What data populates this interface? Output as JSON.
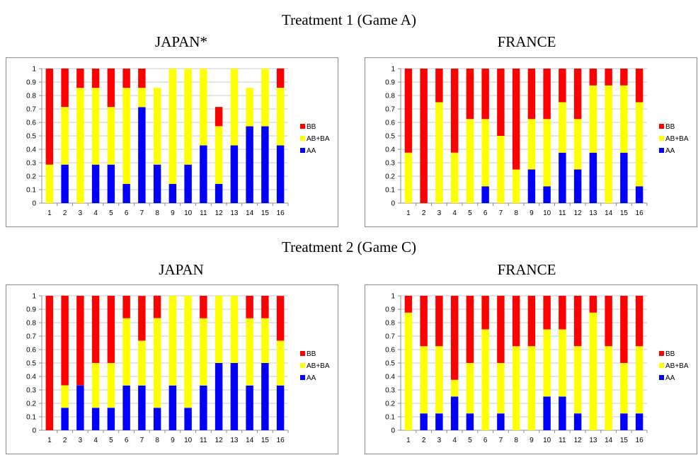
{
  "headings": {
    "treatment1": "Treatment 1 (Game A)",
    "treatment2": "Treatment 2 (Game C)"
  },
  "colors": {
    "BB": "#ff0000",
    "AB+BA": "#ffff00",
    "AA": "#0000ff"
  },
  "chart_data": [
    {
      "type": "bar",
      "stacked": true,
      "title": "JAPAN*",
      "categories": [
        "1",
        "2",
        "3",
        "4",
        "5",
        "6",
        "7",
        "8",
        "9",
        "10",
        "11",
        "12",
        "13",
        "14",
        "15",
        "16"
      ],
      "ylim": [
        0,
        1
      ],
      "yticks": [
        "0",
        "0.1",
        "0.2",
        "0.3",
        "0.4",
        "0.5",
        "0.6",
        "0.7",
        "0.8",
        "0.9",
        "1"
      ],
      "legend_position": "right",
      "series": [
        {
          "name": "AA",
          "values": [
            0,
            0.286,
            0,
            0.286,
            0.286,
            0.143,
            0.714,
            0.286,
            0.143,
            0.286,
            0.429,
            0.143,
            0.429,
            0.571,
            0.571,
            0.429
          ]
        },
        {
          "name": "AB+BA",
          "values": [
            0.286,
            0.429,
            0.857,
            0.571,
            0.429,
            0.714,
            0.143,
            0.571,
            0.857,
            0.714,
            0.571,
            0.429,
            0.571,
            0.286,
            0.429,
            0.429
          ]
        },
        {
          "name": "BB",
          "values": [
            0.714,
            0.286,
            0.143,
            0.143,
            0.286,
            0.143,
            0.143,
            0,
            0,
            0,
            0,
            0.143,
            0,
            0,
            0,
            0.143
          ]
        }
      ]
    },
    {
      "type": "bar",
      "stacked": true,
      "title": "FRANCE",
      "categories": [
        "1",
        "2",
        "3",
        "4",
        "5",
        "6",
        "7",
        "8",
        "9",
        "10",
        "11",
        "12",
        "13",
        "14",
        "15",
        "16"
      ],
      "ylim": [
        0,
        1
      ],
      "yticks": [
        "0",
        "0.1",
        "0.2",
        "0.3",
        "0.4",
        "0.5",
        "0.6",
        "0.7",
        "0.8",
        "0.9",
        "1"
      ],
      "legend_position": "right",
      "series": [
        {
          "name": "AA",
          "values": [
            0,
            0,
            0,
            0,
            0,
            0.125,
            0,
            0,
            0.25,
            0.125,
            0.375,
            0.25,
            0.375,
            0,
            0.375,
            0.125
          ]
        },
        {
          "name": "AB+BA",
          "values": [
            0.375,
            0,
            0.75,
            0.375,
            0.625,
            0.5,
            0.5,
            0.25,
            0.375,
            0.5,
            0.375,
            0.375,
            0.5,
            0.875,
            0.5,
            0.625
          ]
        },
        {
          "name": "BB",
          "values": [
            0.625,
            1,
            0.25,
            0.625,
            0.375,
            0.375,
            0.5,
            0.75,
            0.375,
            0.375,
            0.25,
            0.375,
            0.125,
            0.125,
            0.125,
            0.25
          ]
        }
      ]
    },
    {
      "type": "bar",
      "stacked": true,
      "title": "JAPAN",
      "categories": [
        "1",
        "2",
        "3",
        "4",
        "5",
        "6",
        "7",
        "8",
        "9",
        "10",
        "11",
        "12",
        "13",
        "14",
        "15",
        "16"
      ],
      "ylim": [
        0,
        1
      ],
      "yticks": [
        "0",
        "0.1",
        "0.2",
        "0.3",
        "0.4",
        "0.5",
        "0.6",
        "0.7",
        "0.8",
        "0.9",
        "1"
      ],
      "legend_position": "right",
      "series": [
        {
          "name": "AA",
          "values": [
            0,
            0.167,
            0.333,
            0.167,
            0.167,
            0.333,
            0.333,
            0.167,
            0.333,
            0.167,
            0.333,
            0.5,
            0.5,
            0.333,
            0.5,
            0.333
          ]
        },
        {
          "name": "AB+BA",
          "values": [
            0,
            0.167,
            0,
            0.333,
            0.333,
            0.5,
            0.333,
            0.667,
            0.667,
            0.833,
            0.5,
            0.5,
            0.5,
            0.5,
            0.333,
            0.333
          ]
        },
        {
          "name": "BB",
          "values": [
            1,
            0.667,
            0.667,
            0.5,
            0.5,
            0.167,
            0.333,
            0.167,
            0,
            0,
            0.167,
            0,
            0,
            0.167,
            0.167,
            0.333
          ]
        }
      ]
    },
    {
      "type": "bar",
      "stacked": true,
      "title": "FRANCE",
      "categories": [
        "1",
        "2",
        "3",
        "4",
        "5",
        "6",
        "7",
        "8",
        "9",
        "10",
        "11",
        "12",
        "13",
        "14",
        "15",
        "16"
      ],
      "ylim": [
        0,
        1
      ],
      "yticks": [
        "0",
        "0.1",
        "0.2",
        "0.3",
        "0.4",
        "0.5",
        "0.6",
        "0.7",
        "0.8",
        "0.9",
        "1"
      ],
      "legend_position": "right",
      "series": [
        {
          "name": "AA",
          "values": [
            0,
            0.125,
            0.125,
            0.25,
            0.125,
            0,
            0.125,
            0,
            0,
            0.25,
            0.25,
            0.125,
            0,
            0,
            0.125,
            0.125
          ]
        },
        {
          "name": "AB+BA",
          "values": [
            0.875,
            0.5,
            0.5,
            0.125,
            0.375,
            0.75,
            0.375,
            0.625,
            0.625,
            0.5,
            0.5,
            0.5,
            0.875,
            0.625,
            0.375,
            0.5
          ]
        },
        {
          "name": "BB",
          "values": [
            0.125,
            0.375,
            0.375,
            0.625,
            0.5,
            0.25,
            0.5,
            0.375,
            0.375,
            0.25,
            0.25,
            0.375,
            0.125,
            0.375,
            0.5,
            0.375
          ]
        }
      ]
    }
  ]
}
